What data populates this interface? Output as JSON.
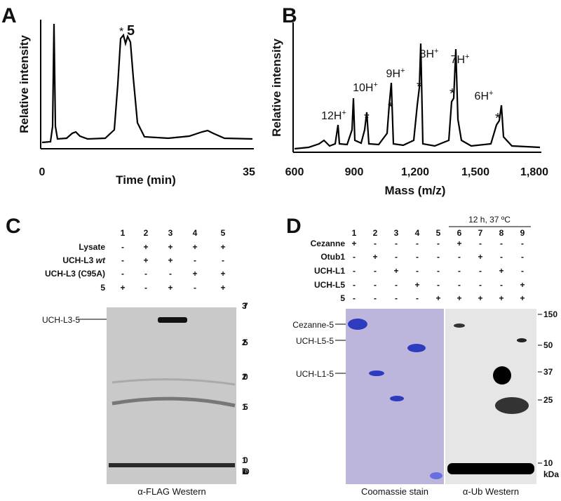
{
  "panel_a": {
    "label": "A",
    "y_label": "Relative intensity",
    "x_label": "Time (min)",
    "xticks": [
      "0",
      "35"
    ],
    "annotations": {
      "star": "*",
      "compound": "5"
    }
  },
  "panel_b": {
    "label": "B",
    "y_label": "Relative intensity",
    "x_label": "Mass (m/z)",
    "xticks": [
      "600",
      "900",
      "1,200",
      "1,500",
      "1,800"
    ],
    "peaks": [
      {
        "ion": "12H",
        "charge": "+"
      },
      {
        "ion": "10H",
        "charge": "+"
      },
      {
        "ion": "9H",
        "charge": "+"
      },
      {
        "ion": "8H",
        "charge": "+"
      },
      {
        "ion": "7H",
        "charge": "+"
      },
      {
        "ion": "6H",
        "charge": "+"
      }
    ],
    "stars": [
      "*",
      "*",
      "*",
      "*",
      "*"
    ]
  },
  "panel_c": {
    "label": "C",
    "lanes": [
      "1",
      "2",
      "3",
      "4",
      "5"
    ],
    "rows": [
      {
        "label": "Lysate",
        "signs": [
          "-",
          "+",
          "+",
          "+",
          "+"
        ]
      },
      {
        "label": "UCH-L3",
        "italic": "wt",
        "signs": [
          "-",
          "+",
          "+",
          "-",
          "-"
        ]
      },
      {
        "label": "UCH-L3 (C95A)",
        "signs": [
          "-",
          "-",
          "-",
          "+",
          "+"
        ]
      },
      {
        "label": "5",
        "signs": [
          "+",
          "-",
          "+",
          "-",
          "+"
        ]
      }
    ],
    "markers": [
      "37",
      "25",
      "20",
      "15",
      "10"
    ],
    "unit": "kDa",
    "band_labels": [
      "UCH-L3-5"
    ],
    "caption": "α-FLAG Western"
  },
  "panel_d": {
    "label": "D",
    "condition": "12 h, 37 ºC",
    "lanes": [
      "1",
      "2",
      "3",
      "4",
      "5",
      "6",
      "7",
      "8",
      "9"
    ],
    "rows": [
      {
        "label": "Cezanne",
        "signs": [
          "+",
          "-",
          "-",
          "-",
          "-",
          "+",
          "-",
          "-",
          "-"
        ]
      },
      {
        "label": "Otub1",
        "signs": [
          "-",
          "+",
          "-",
          "-",
          "-",
          "-",
          "+",
          "-",
          "-"
        ]
      },
      {
        "label": "UCH-L1",
        "signs": [
          "-",
          "-",
          "+",
          "-",
          "-",
          "-",
          "-",
          "+",
          "-"
        ]
      },
      {
        "label": "UCH-L5",
        "signs": [
          "-",
          "-",
          "-",
          "+",
          "-",
          "-",
          "-",
          "-",
          "+"
        ]
      },
      {
        "label": "5",
        "signs": [
          "-",
          "-",
          "-",
          "-",
          "+",
          "+",
          "+",
          "+",
          "+"
        ]
      }
    ],
    "markers": [
      "150",
      "50",
      "37",
      "25",
      "10"
    ],
    "unit": "kDa",
    "band_labels": [
      "Cezanne-5",
      "UCH-L5-5",
      "UCH-L1-5"
    ],
    "captions": [
      "Coomassie stain",
      "α-Ub Western"
    ]
  }
}
